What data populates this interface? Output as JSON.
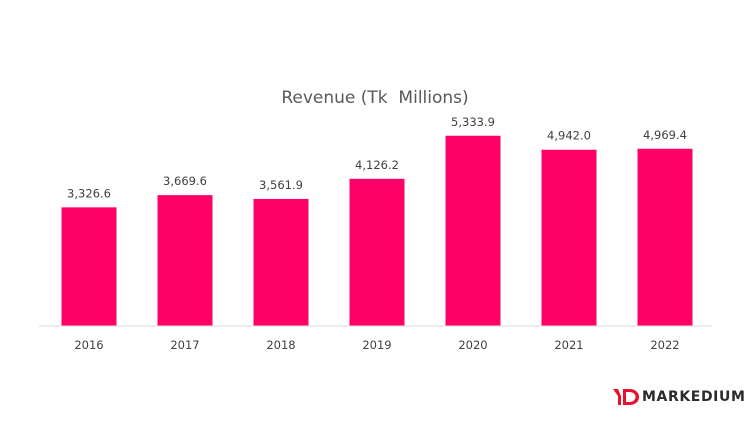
{
  "chart_data": {
    "type": "bar",
    "title": "Revenue (Tk  Millions)",
    "categories": [
      "2016",
      "2017",
      "2018",
      "2019",
      "2020",
      "2021",
      "2022"
    ],
    "values": [
      3326.6,
      3669.6,
      3561.9,
      4126.2,
      5333.9,
      4942.0,
      4969.4
    ],
    "data_labels": [
      "3,326.6",
      "3,669.6",
      "3,561.9",
      "4,126.2",
      "5,333.9",
      "4,942.0",
      "4,969.4"
    ],
    "xlabel": "",
    "ylabel": "",
    "ylim": [
      0,
      6000
    ],
    "grid": false,
    "legend": "none",
    "bar_color": "#FF0066",
    "axis_color": "#D9D9D9"
  },
  "logo": {
    "text": "MARKEDIUM",
    "mark_color": "#E8112D"
  }
}
